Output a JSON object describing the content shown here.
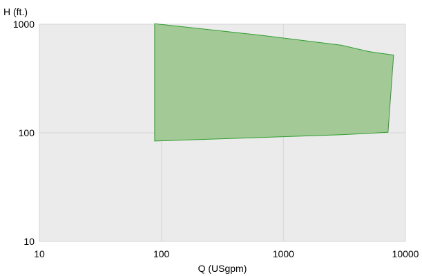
{
  "chart_data": {
    "type": "area",
    "title": "",
    "xlabel": "Q (USgpm)",
    "ylabel": "H (ft.)",
    "x_scale": "log",
    "y_scale": "log",
    "xlim": [
      10,
      10000
    ],
    "ylim": [
      10,
      1000
    ],
    "x_ticks": [
      "10",
      "100",
      "1000",
      "10000"
    ],
    "y_ticks": [
      "10",
      "100",
      "1000"
    ],
    "grid": true,
    "series": [
      {
        "color": "#a2c996",
        "stroke": "#2e9e2e",
        "points": [
          {
            "x": 88,
            "y": 1010
          },
          {
            "x": 600,
            "y": 800
          },
          {
            "x": 3000,
            "y": 640
          },
          {
            "x": 5000,
            "y": 560
          },
          {
            "x": 8000,
            "y": 520
          },
          {
            "x": 7200,
            "y": 101
          },
          {
            "x": 3000,
            "y": 96
          },
          {
            "x": 88,
            "y": 84
          }
        ]
      }
    ]
  }
}
